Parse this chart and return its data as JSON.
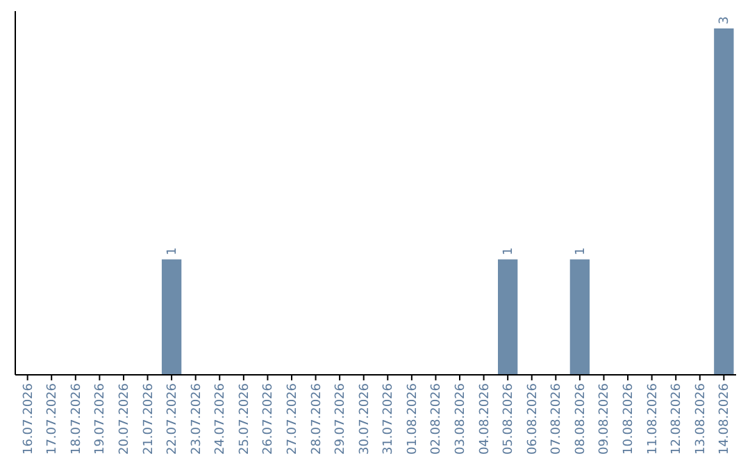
{
  "chart_data": {
    "type": "bar",
    "categories": [
      "16.07.2026",
      "17.07.2026",
      "18.07.2026",
      "19.07.2026",
      "20.07.2026",
      "21.07.2026",
      "22.07.2026",
      "23.07.2026",
      "24.07.2026",
      "25.07.2026",
      "26.07.2026",
      "27.07.2026",
      "28.07.2026",
      "29.07.2026",
      "30.07.2026",
      "31.07.2026",
      "01.08.2026",
      "02.08.2026",
      "03.08.2026",
      "04.08.2026",
      "05.08.2026",
      "06.08.2026",
      "07.08.2026",
      "08.08.2026",
      "09.08.2026",
      "10.08.2026",
      "11.08.2026",
      "12.08.2026",
      "13.08.2026",
      "14.08.2026"
    ],
    "values": [
      0,
      0,
      0,
      0,
      0,
      0,
      1,
      0,
      0,
      0,
      0,
      0,
      0,
      0,
      0,
      0,
      0,
      0,
      0,
      0,
      1,
      0,
      0,
      1,
      0,
      0,
      0,
      0,
      0,
      3
    ],
    "value_labels": [
      null,
      null,
      null,
      null,
      null,
      null,
      "1",
      null,
      null,
      null,
      null,
      null,
      null,
      null,
      null,
      null,
      null,
      null,
      null,
      null,
      "1",
      null,
      null,
      "1",
      null,
      null,
      null,
      null,
      null,
      "3"
    ],
    "color": "#6d8caa"
  }
}
